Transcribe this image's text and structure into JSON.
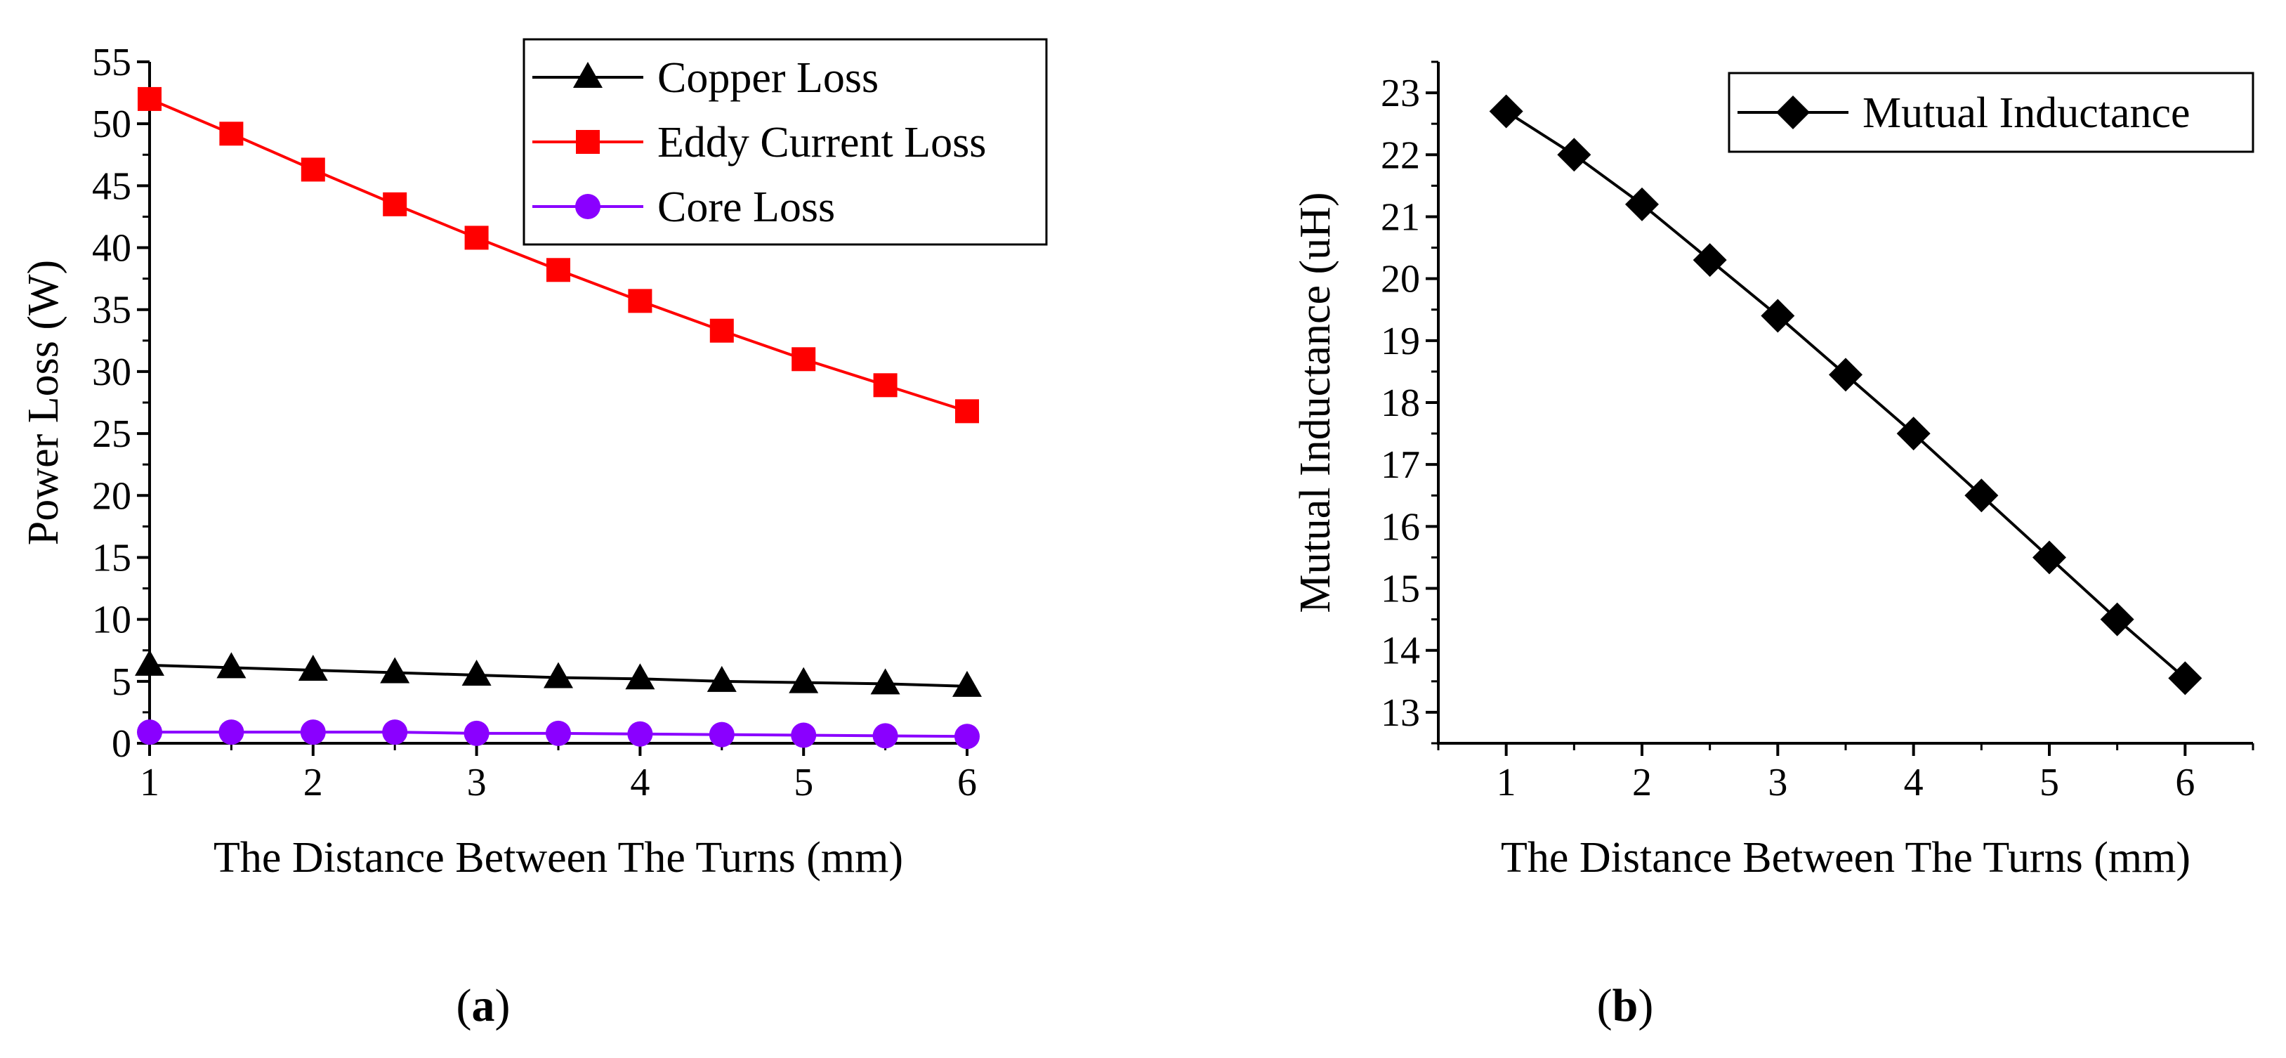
{
  "chart_data": [
    {
      "type": "line",
      "panel_label": "a",
      "xlabel": "The Distance Between The Turns (mm)",
      "ylabel": "Power Loss (W)",
      "xlim": [
        1,
        6
      ],
      "ylim": [
        0,
        55
      ],
      "xticks": [
        1,
        2,
        3,
        4,
        5,
        6
      ],
      "yticks": [
        0,
        5,
        10,
        15,
        20,
        25,
        30,
        35,
        40,
        45,
        50,
        55
      ],
      "grid": false,
      "legend_position": "top-right",
      "x": [
        1,
        1.5,
        2,
        2.5,
        3,
        3.5,
        4,
        4.5,
        5,
        5.5,
        6
      ],
      "series": [
        {
          "name": "Copper Loss",
          "color": "#000000",
          "marker": "triangle",
          "values": [
            6.3,
            6.1,
            5.9,
            5.7,
            5.5,
            5.3,
            5.2,
            5.0,
            4.9,
            4.8,
            4.6
          ]
        },
        {
          "name": "Eddy Current Loss",
          "color": "#ff0000",
          "marker": "square",
          "values": [
            52.0,
            49.2,
            46.3,
            43.5,
            40.8,
            38.2,
            35.7,
            33.3,
            31.0,
            28.9,
            26.8
          ]
        },
        {
          "name": "Core Loss",
          "color": "#8a00ff",
          "marker": "circle",
          "values": [
            0.9,
            0.9,
            0.9,
            0.9,
            0.8,
            0.8,
            0.75,
            0.7,
            0.65,
            0.6,
            0.55
          ]
        }
      ]
    },
    {
      "type": "line",
      "panel_label": "b",
      "xlabel": "The Distance Between The Turns (mm)",
      "ylabel": "Mutual Inductance (uH)",
      "xlim": [
        0.5,
        6.5
      ],
      "ylim": [
        12.5,
        23.5
      ],
      "xticks": [
        1,
        2,
        3,
        4,
        5,
        6
      ],
      "yticks": [
        13,
        14,
        15,
        16,
        17,
        18,
        19,
        20,
        21,
        22,
        23
      ],
      "grid": false,
      "legend_position": "top-right",
      "x": [
        1,
        1.5,
        2,
        2.5,
        3,
        3.5,
        4,
        4.5,
        5,
        5.5,
        6
      ],
      "series": [
        {
          "name": "Mutual Inductance",
          "color": "#000000",
          "marker": "diamond",
          "values": [
            22.7,
            22.0,
            21.2,
            20.3,
            19.4,
            18.45,
            17.5,
            16.5,
            15.5,
            14.5,
            13.55
          ]
        }
      ]
    }
  ]
}
